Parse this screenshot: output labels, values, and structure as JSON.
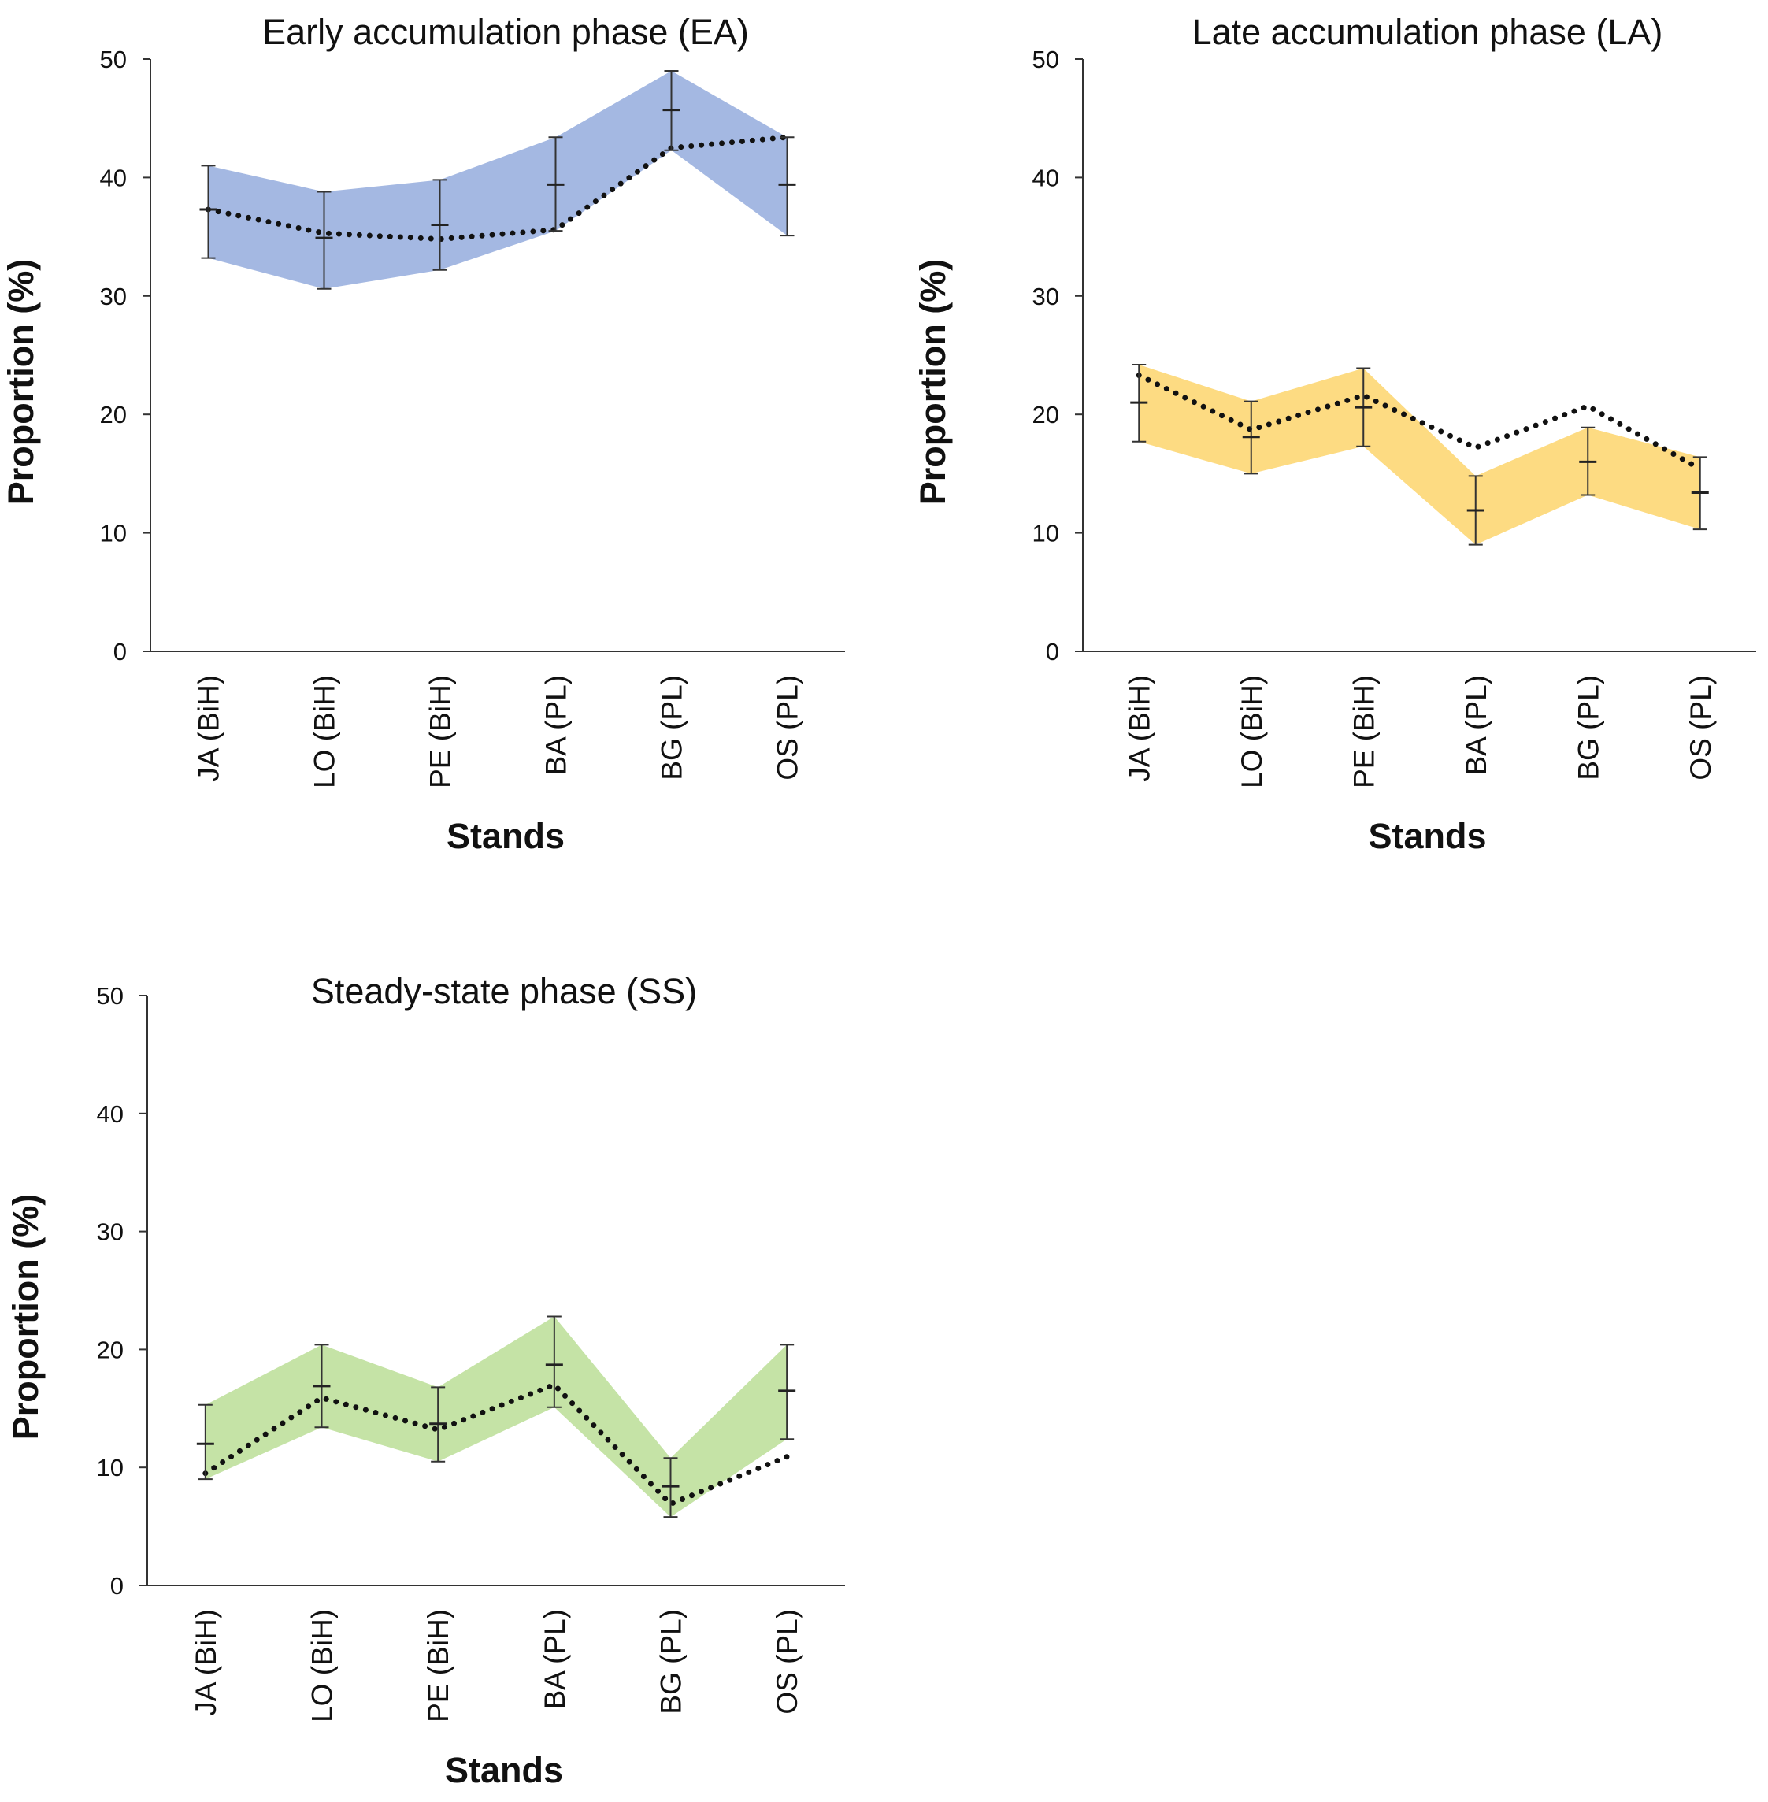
{
  "figure": {
    "panels_description_hidden": false
  },
  "chart_data": [
    {
      "type": "area",
      "title": "Early accumulation phase (EA)",
      "xlabel": "Stands",
      "ylabel": "Proportion (%)",
      "ylim": [
        0,
        50
      ],
      "yticks": [
        0,
        10,
        20,
        30,
        40,
        50
      ],
      "categories": [
        "JA (BiH)",
        "LO (BiH)",
        "PE (BiH)",
        "BA (PL)",
        "BG (PL)",
        "OS (PL)"
      ],
      "band_color": "#a4b8e2",
      "series": [
        {
          "name": "mean",
          "values": [
            37.3,
            34.9,
            36.0,
            39.4,
            45.7,
            39.4
          ]
        },
        {
          "name": "lower",
          "values": [
            33.2,
            30.6,
            32.2,
            35.5,
            42.3,
            35.1
          ]
        },
        {
          "name": "upper",
          "values": [
            41.0,
            38.8,
            39.8,
            43.4,
            49.0,
            43.4
          ]
        },
        {
          "name": "trend",
          "values": [
            37.3,
            35.3,
            34.8,
            35.6,
            42.5,
            43.4
          ]
        }
      ],
      "grid": false
    },
    {
      "type": "area",
      "title": "Late accumulation phase (LA)",
      "xlabel": "Stands",
      "ylabel": "Proportion (%)",
      "ylim": [
        0,
        50
      ],
      "yticks": [
        0,
        10,
        20,
        30,
        40,
        50
      ],
      "categories": [
        "JA (BiH)",
        "LO (BiH)",
        "PE (BiH)",
        "BA (PL)",
        "BG (PL)",
        "OS (PL)"
      ],
      "band_color": "#fddb82",
      "series": [
        {
          "name": "mean",
          "values": [
            21.0,
            18.1,
            20.6,
            11.9,
            16.0,
            13.4
          ]
        },
        {
          "name": "lower",
          "values": [
            17.7,
            15.0,
            17.3,
            9.0,
            13.2,
            10.3
          ]
        },
        {
          "name": "upper",
          "values": [
            24.2,
            21.1,
            23.9,
            14.8,
            18.9,
            16.4
          ]
        },
        {
          "name": "trend",
          "values": [
            23.3,
            18.7,
            21.6,
            17.2,
            20.7,
            15.4
          ]
        }
      ],
      "grid": false
    },
    {
      "type": "area",
      "title": "Steady-state phase (SS)",
      "xlabel": "Stands",
      "ylabel": "Proportion (%)",
      "ylim": [
        0,
        50
      ],
      "yticks": [
        0,
        10,
        20,
        30,
        40,
        50
      ],
      "categories": [
        "JA (BiH)",
        "LO (BiH)",
        "PE (BiH)",
        "BA (PL)",
        "BG (PL)",
        "OS (PL)"
      ],
      "band_color": "#c5e3a6",
      "series": [
        {
          "name": "mean",
          "values": [
            12.0,
            16.9,
            13.7,
            18.7,
            8.4,
            16.5
          ]
        },
        {
          "name": "lower",
          "values": [
            9.0,
            13.4,
            10.5,
            15.1,
            5.8,
            12.4
          ]
        },
        {
          "name": "upper",
          "values": [
            15.3,
            20.4,
            16.8,
            22.8,
            10.8,
            20.4
          ]
        },
        {
          "name": "trend",
          "values": [
            9.5,
            15.9,
            13.2,
            17.0,
            6.9,
            10.9
          ]
        }
      ],
      "grid": false
    }
  ]
}
